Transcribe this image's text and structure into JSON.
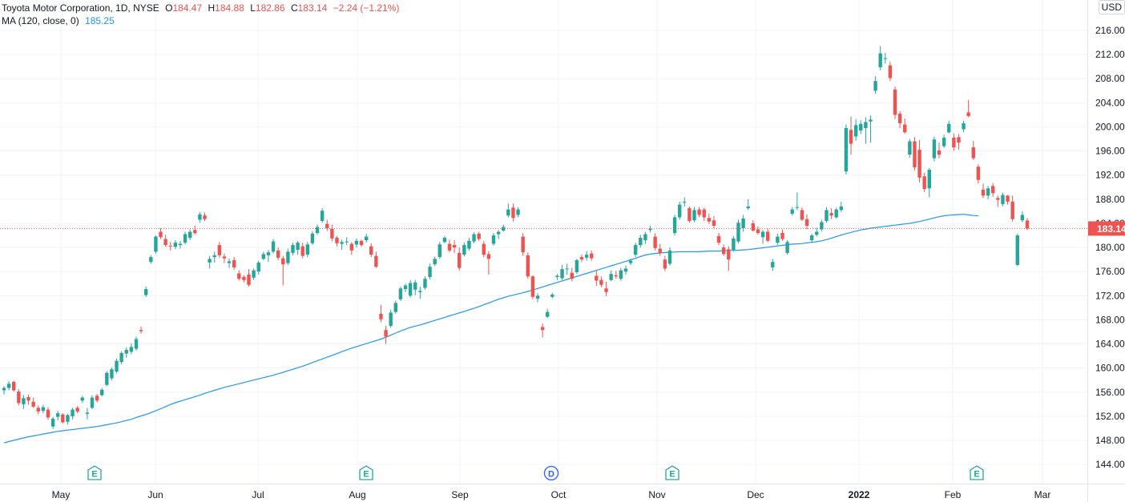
{
  "legend": {
    "symbol": "Toyota Motor Corporation, 1D, NYSE",
    "o_label": "O",
    "o_value": "184.47",
    "h_label": "H",
    "h_value": "184.88",
    "l_label": "L",
    "l_value": "182.86",
    "c_label": "C",
    "c_value": "183.14",
    "change": "−2.24 (−1.21%)",
    "ma_label": "MA (120, close, 0)",
    "ma_value": "185.25"
  },
  "currency": "USD",
  "colors": {
    "up": "#26a69a",
    "down": "#ef5350",
    "ma": "#2196f3",
    "last_price_bg": "#ef5350"
  },
  "chart_data": {
    "type": "candlestick",
    "title": "Toyota Motor Corporation, 1D, NYSE",
    "y_ticks": [
      216,
      212,
      208,
      204,
      200,
      196,
      192,
      188,
      184,
      180,
      176,
      172,
      168,
      164,
      160,
      156,
      152,
      148,
      144
    ],
    "y_range": [
      141.5,
      218.5
    ],
    "x_labels": [
      "May",
      "Jun",
      "Jul",
      "Aug",
      "Sep",
      "Oct",
      "Nov",
      "Dec",
      "2022",
      "Feb",
      "Mar"
    ],
    "last_price": "183.14",
    "event_markers": [
      "E",
      "E",
      "D",
      "E",
      "E"
    ],
    "candles": [
      [
        156.3,
        157.0,
        155.6,
        156.7
      ],
      [
        156.7,
        157.8,
        156.3,
        157.4
      ],
      [
        157.7,
        157.9,
        156.1,
        156.3
      ],
      [
        156.1,
        156.5,
        153.8,
        154.2
      ],
      [
        154.0,
        155.5,
        153.2,
        155.0
      ],
      [
        155.2,
        155.6,
        153.9,
        154.6
      ],
      [
        154.4,
        155.1,
        153.4,
        153.6
      ],
      [
        153.4,
        153.8,
        152.3,
        152.8
      ],
      [
        152.9,
        153.9,
        152.5,
        153.5
      ],
      [
        153.1,
        153.5,
        151.4,
        151.8
      ],
      [
        150.3,
        151.9,
        149.9,
        151.6
      ],
      [
        151.9,
        152.9,
        151.3,
        152.5
      ],
      [
        152.3,
        152.5,
        150.8,
        151.0
      ],
      [
        151.1,
        152.4,
        150.6,
        152.2
      ],
      [
        152.0,
        153.4,
        151.5,
        153.1
      ],
      [
        153.4,
        153.7,
        152.5,
        152.8
      ],
      [
        154.6,
        155.4,
        154.2,
        155.1
      ],
      [
        152.4,
        153.4,
        151.5,
        152.6
      ],
      [
        153.4,
        155.5,
        153.2,
        155.1
      ],
      [
        155.4,
        155.7,
        154.3,
        154.6
      ],
      [
        155.5,
        156.7,
        155.3,
        156.4
      ],
      [
        157.2,
        159.5,
        157.0,
        159.2
      ],
      [
        158.3,
        160.1,
        158.0,
        159.8
      ],
      [
        159.4,
        161.6,
        159.1,
        161.2
      ],
      [
        161.0,
        162.8,
        160.6,
        162.5
      ],
      [
        162.4,
        163.4,
        161.7,
        163.0
      ],
      [
        162.7,
        164.1,
        162.3,
        163.5
      ],
      [
        163.2,
        165.2,
        162.9,
        164.8
      ],
      [
        166.3,
        166.9,
        165.7,
        166.1
      ],
      [
        172.1,
        173.5,
        171.8,
        173.1
      ],
      [
        177.6,
        178.7,
        177.3,
        178.4
      ],
      [
        179.3,
        182.0,
        179.0,
        181.8
      ],
      [
        182.6,
        183.2,
        181.4,
        181.7
      ],
      [
        181.4,
        182.1,
        180.1,
        180.4
      ],
      [
        180.3,
        180.9,
        179.5,
        180.2
      ],
      [
        180.1,
        181.2,
        179.7,
        180.8
      ],
      [
        180.4,
        181.1,
        179.8,
        180.6
      ],
      [
        180.8,
        182.6,
        180.5,
        182.2
      ],
      [
        181.6,
        183.0,
        181.2,
        182.6
      ],
      [
        182.9,
        183.6,
        182.1,
        182.4
      ],
      [
        184.6,
        185.9,
        184.1,
        185.5
      ],
      [
        185.3,
        185.8,
        184.4,
        184.7
      ],
      [
        177.5,
        178.6,
        176.5,
        178.1
      ],
      [
        178.4,
        179.3,
        177.5,
        178.7
      ],
      [
        180.4,
        180.9,
        178.3,
        178.7
      ],
      [
        178.5,
        179.0,
        177.4,
        178.2
      ],
      [
        177.4,
        178.2,
        176.6,
        177.7
      ],
      [
        177.9,
        178.4,
        176.3,
        176.7
      ],
      [
        175.7,
        176.2,
        174.5,
        174.8
      ],
      [
        175.1,
        175.4,
        174.2,
        174.6
      ],
      [
        175.5,
        176.4,
        173.5,
        173.8
      ],
      [
        175.0,
        176.5,
        174.6,
        176.2
      ],
      [
        176.0,
        177.8,
        175.5,
        177.5
      ],
      [
        178.1,
        179.3,
        177.9,
        178.9
      ],
      [
        178.7,
        179.6,
        177.6,
        179.2
      ],
      [
        179.3,
        181.4,
        179.0,
        181.0
      ],
      [
        179.5,
        180.0,
        177.9,
        178.3
      ],
      [
        178.2,
        178.6,
        173.7,
        177.2
      ],
      [
        177.4,
        179.8,
        177.1,
        179.3
      ],
      [
        179.1,
        180.8,
        178.7,
        180.4
      ],
      [
        179.6,
        181.1,
        178.8,
        180.8
      ],
      [
        180.2,
        180.8,
        178.2,
        178.6
      ],
      [
        178.8,
        180.9,
        178.4,
        180.5
      ],
      [
        180.7,
        182.7,
        180.4,
        182.3
      ],
      [
        182.4,
        183.8,
        182.1,
        183.4
      ],
      [
        184.4,
        186.5,
        184.1,
        186.1
      ],
      [
        183.9,
        184.6,
        182.7,
        183.2
      ],
      [
        183.1,
        183.8,
        181.0,
        181.5
      ],
      [
        181.6,
        181.9,
        180.2,
        180.7
      ],
      [
        180.6,
        181.3,
        179.6,
        180.9
      ],
      [
        180.9,
        181.7,
        180.4,
        181.0
      ],
      [
        180.6,
        180.9,
        178.8,
        179.5
      ],
      [
        180.5,
        181.5,
        180.0,
        181.1
      ],
      [
        181.1,
        181.3,
        180.1,
        180.4
      ],
      [
        181.2,
        182.3,
        180.8,
        181.8
      ],
      [
        180.2,
        180.7,
        178.4,
        178.8
      ],
      [
        178.6,
        179.3,
        176.6,
        176.8
      ],
      [
        169.0,
        170.5,
        167.6,
        168.1
      ],
      [
        166.3,
        167.0,
        164.0,
        165.2
      ],
      [
        167.0,
        169.7,
        166.7,
        169.2
      ],
      [
        169.3,
        171.2,
        169.0,
        170.8
      ],
      [
        171.4,
        173.5,
        171.1,
        173.2
      ],
      [
        173.1,
        174.0,
        172.6,
        173.7
      ],
      [
        172.0,
        174.6,
        171.7,
        174.1
      ],
      [
        173.0,
        174.6,
        172.1,
        174.2
      ],
      [
        172.6,
        173.5,
        171.5,
        172.8
      ],
      [
        173.3,
        175.2,
        173.0,
        174.8
      ],
      [
        175.1,
        177.3,
        174.7,
        176.8
      ],
      [
        177.2,
        178.5,
        176.9,
        178.1
      ],
      [
        178.4,
        180.9,
        178.1,
        180.5
      ],
      [
        180.9,
        181.9,
        180.7,
        181.6
      ],
      [
        180.6,
        181.3,
        179.2,
        179.5
      ],
      [
        180.4,
        181.2,
        179.1,
        180.0
      ],
      [
        179.1,
        180.0,
        176.2,
        176.6
      ],
      [
        178.8,
        180.8,
        178.5,
        180.4
      ],
      [
        179.8,
        181.6,
        179.5,
        181.1
      ],
      [
        181.0,
        182.5,
        180.7,
        182.2
      ],
      [
        182.3,
        182.6,
        181.1,
        181.4
      ],
      [
        180.6,
        181.1,
        178.4,
        178.8
      ],
      [
        178.9,
        179.4,
        175.5,
        178.1
      ],
      [
        180.6,
        182.4,
        180.3,
        182.0
      ],
      [
        182.2,
        182.9,
        181.4,
        182.6
      ],
      [
        182.8,
        183.8,
        182.6,
        183.4
      ],
      [
        185.3,
        187.3,
        185.0,
        186.3
      ],
      [
        186.6,
        187.3,
        184.3,
        184.9
      ],
      [
        185.4,
        186.7,
        185.0,
        186.3
      ],
      [
        181.8,
        182.4,
        178.6,
        179.2
      ],
      [
        178.7,
        179.2,
        174.8,
        175.2
      ],
      [
        175.2,
        175.4,
        171.4,
        171.8
      ],
      [
        171.5,
        172.4,
        170.9,
        172.0
      ],
      [
        166.8,
        167.4,
        165.1,
        166.3
      ],
      [
        168.5,
        169.8,
        168.3,
        169.3
      ],
      [
        171.8,
        172.5,
        171.6,
        172.2
      ],
      [
        175.1,
        175.6,
        174.6,
        175.3
      ],
      [
        174.9,
        177.1,
        174.6,
        176.4
      ],
      [
        176.5,
        177.3,
        175.5,
        176.5
      ],
      [
        175.8,
        176.6,
        174.4,
        174.8
      ],
      [
        175.9,
        178.1,
        175.6,
        177.9
      ],
      [
        178.4,
        178.8,
        177.6,
        178.0
      ],
      [
        178.3,
        179.4,
        177.8,
        178.8
      ],
      [
        179.0,
        179.5,
        177.8,
        178.2
      ],
      [
        175.3,
        176.1,
        173.6,
        174.5
      ],
      [
        174.6,
        175.2,
        173.4,
        173.8
      ],
      [
        173.2,
        174.3,
        171.9,
        172.6
      ],
      [
        174.6,
        176.2,
        174.4,
        175.6
      ],
      [
        175.4,
        176.1,
        174.8,
        175.2
      ],
      [
        174.8,
        176.6,
        174.5,
        176.2
      ],
      [
        176.0,
        177.0,
        175.5,
        176.5
      ],
      [
        177.4,
        178.1,
        177.1,
        177.8
      ],
      [
        178.8,
        180.8,
        178.4,
        180.4
      ],
      [
        180.4,
        182.1,
        180.0,
        181.6
      ],
      [
        181.2,
        182.6,
        180.6,
        182.2
      ],
      [
        182.9,
        183.6,
        182.5,
        183.1
      ],
      [
        181.8,
        182.4,
        179.5,
        179.9
      ],
      [
        179.8,
        180.6,
        178.6,
        179.1
      ],
      [
        178.0,
        178.6,
        176.1,
        176.5
      ],
      [
        177.3,
        180.0,
        177.0,
        179.5
      ],
      [
        182.4,
        185.4,
        182.0,
        185.0
      ],
      [
        185.0,
        187.6,
        184.6,
        187.1
      ],
      [
        187.5,
        188.3,
        186.8,
        187.6
      ],
      [
        186.5,
        186.8,
        184.1,
        184.4
      ],
      [
        184.5,
        186.7,
        184.2,
        186.2
      ],
      [
        186.3,
        186.7,
        185.0,
        185.4
      ],
      [
        186.3,
        186.6,
        184.4,
        185.0
      ],
      [
        184.9,
        185.6,
        183.9,
        184.3
      ],
      [
        184.5,
        185.2,
        183.2,
        183.6
      ],
      [
        181.9,
        182.4,
        180.4,
        180.8
      ],
      [
        180.0,
        180.5,
        178.6,
        178.9
      ],
      [
        179.7,
        180.2,
        176.1,
        178.0
      ],
      [
        179.6,
        181.9,
        179.3,
        181.5
      ],
      [
        181.0,
        184.6,
        180.7,
        184.1
      ],
      [
        183.2,
        185.4,
        182.6,
        184.8
      ],
      [
        186.5,
        188.0,
        186.2,
        186.8
      ],
      [
        184.0,
        184.5,
        182.6,
        182.8
      ],
      [
        183.0,
        183.5,
        182.1,
        182.4
      ],
      [
        181.7,
        182.9,
        180.6,
        182.6
      ],
      [
        182.6,
        183.1,
        180.9,
        181.1
      ],
      [
        176.7,
        178.1,
        176.1,
        177.6
      ],
      [
        180.8,
        182.3,
        180.4,
        181.8
      ],
      [
        182.4,
        183.0,
        181.1,
        181.4
      ],
      [
        179.1,
        181.2,
        178.8,
        180.9
      ],
      [
        185.6,
        186.7,
        185.3,
        186.3
      ],
      [
        186.6,
        189.1,
        186.2,
        186.7
      ],
      [
        186.2,
        186.6,
        184.4,
        184.6
      ],
      [
        184.7,
        185.5,
        183.0,
        183.6
      ],
      [
        181.2,
        182.3,
        180.8,
        182.0
      ],
      [
        182.1,
        183.3,
        181.8,
        182.6
      ],
      [
        183.0,
        184.6,
        182.7,
        184.2
      ],
      [
        184.4,
        186.7,
        184.1,
        186.2
      ],
      [
        185.7,
        186.5,
        184.7,
        185.3
      ],
      [
        185.0,
        186.6,
        184.8,
        186.3
      ],
      [
        186.2,
        187.6,
        185.9,
        186.8
      ],
      [
        192.6,
        200.4,
        192.1,
        199.8
      ],
      [
        199.5,
        201.7,
        195.4,
        197.2
      ],
      [
        198.4,
        201.3,
        197.7,
        200.3
      ],
      [
        199.4,
        201.1,
        198.8,
        200.5
      ],
      [
        199.8,
        201.6,
        197.2,
        200.8
      ],
      [
        200.9,
        201.9,
        197.4,
        201.2
      ],
      [
        206.0,
        208.4,
        205.5,
        207.6
      ],
      [
        209.9,
        213.4,
        209.4,
        212.2
      ],
      [
        211.3,
        212.3,
        210.5,
        211.4
      ],
      [
        210.2,
        210.8,
        207.6,
        208.1
      ],
      [
        206.2,
        206.7,
        201.3,
        202.0
      ],
      [
        202.2,
        202.6,
        199.8,
        200.6
      ],
      [
        200.4,
        201.4,
        198.9,
        199.1
      ],
      [
        195.4,
        198.0,
        194.9,
        197.6
      ],
      [
        197.6,
        198.3,
        192.8,
        193.3
      ],
      [
        196.2,
        197.8,
        190.8,
        191.6
      ],
      [
        191.8,
        192.4,
        189.2,
        189.7
      ],
      [
        189.8,
        193.2,
        188.3,
        192.9
      ],
      [
        194.8,
        198.4,
        194.3,
        197.9
      ],
      [
        196.1,
        197.4,
        194.8,
        195.4
      ],
      [
        196.8,
        198.7,
        196.5,
        198.2
      ],
      [
        199.1,
        201.0,
        198.9,
        200.5
      ],
      [
        198.2,
        198.9,
        196.0,
        196.6
      ],
      [
        198.3,
        198.8,
        196.2,
        197.4
      ],
      [
        199.6,
        201.0,
        199.1,
        200.6
      ],
      [
        202.4,
        204.5,
        201.6,
        201.8
      ],
      [
        196.6,
        197.7,
        194.5,
        194.8
      ],
      [
        193.4,
        193.8,
        190.6,
        191.2
      ],
      [
        189.6,
        190.6,
        188.2,
        188.6
      ],
      [
        188.6,
        190.2,
        188.0,
        189.8
      ],
      [
        190.2,
        190.7,
        188.4,
        189.0
      ],
      [
        188.2,
        188.6,
        186.7,
        187.9
      ],
      [
        187.2,
        189.1,
        186.8,
        188.7
      ],
      [
        188.6,
        188.7,
        187.1,
        187.6
      ],
      [
        187.6,
        188.6,
        184.3,
        184.7
      ],
      [
        177.1,
        182.3,
        176.9,
        182.0
      ],
      [
        184.5,
        186.0,
        184.2,
        185.4
      ],
      [
        184.47,
        184.88,
        182.86,
        183.14
      ]
    ],
    "ma": [
      147.6,
      147.8,
      148.0,
      148.2,
      148.4,
      148.6,
      148.75,
      148.9,
      149.05,
      149.2,
      149.35,
      149.5,
      149.6,
      149.7,
      149.8,
      149.9,
      150.0,
      150.1,
      150.2,
      150.3,
      150.45,
      150.6,
      150.75,
      150.9,
      151.1,
      151.3,
      151.5,
      151.8,
      152.05,
      152.3,
      152.6,
      152.9,
      153.25,
      153.6,
      153.95,
      154.25,
      154.5,
      154.75,
      155.0,
      155.25,
      155.5,
      155.8,
      156.05,
      156.3,
      156.55,
      156.8,
      157.0,
      157.2,
      157.4,
      157.6,
      157.8,
      158.0,
      158.2,
      158.4,
      158.6,
      158.8,
      159.05,
      159.3,
      159.55,
      159.8,
      160.05,
      160.3,
      160.6,
      160.9,
      161.2,
      161.5,
      161.8,
      162.1,
      162.4,
      162.7,
      163.0,
      163.3,
      163.55,
      163.8,
      164.05,
      164.3,
      164.55,
      164.8,
      165.1,
      165.45,
      165.8,
      166.15,
      166.45,
      166.75,
      166.95,
      167.15,
      167.4,
      167.65,
      167.9,
      168.15,
      168.4,
      168.65,
      168.9,
      169.15,
      169.4,
      169.65,
      169.9,
      170.2,
      170.5,
      170.8,
      171.1,
      171.4,
      171.65,
      171.9,
      172.1,
      172.3,
      172.5,
      172.7,
      172.95,
      173.2,
      173.45,
      173.7,
      173.95,
      174.2,
      174.45,
      174.7,
      174.95,
      175.2,
      175.45,
      175.7,
      175.95,
      176.2,
      176.45,
      176.7,
      176.95,
      177.2,
      177.45,
      177.7,
      177.95,
      178.2,
      178.5,
      178.75,
      178.9,
      179.0,
      179.1,
      179.15,
      179.2,
      179.25,
      179.3,
      179.3,
      179.3,
      179.3,
      179.3,
      179.35,
      179.4,
      179.4,
      179.4,
      179.45,
      179.5,
      179.5,
      179.55,
      179.6,
      179.65,
      179.75,
      179.85,
      179.95,
      180.05,
      180.15,
      180.25,
      180.35,
      180.45,
      180.55,
      180.6,
      180.65,
      180.75,
      180.85,
      180.95,
      181.1,
      181.3,
      181.55,
      181.8,
      182.05,
      182.3,
      182.5,
      182.7,
      182.9,
      183.05,
      183.2,
      183.3,
      183.4,
      183.5,
      183.6,
      183.7,
      183.8,
      183.9,
      184.0,
      184.15,
      184.3,
      184.5,
      184.7,
      184.9,
      185.1,
      185.25,
      185.35,
      185.4,
      185.45,
      185.5,
      185.4,
      185.3,
      185.25
    ]
  }
}
